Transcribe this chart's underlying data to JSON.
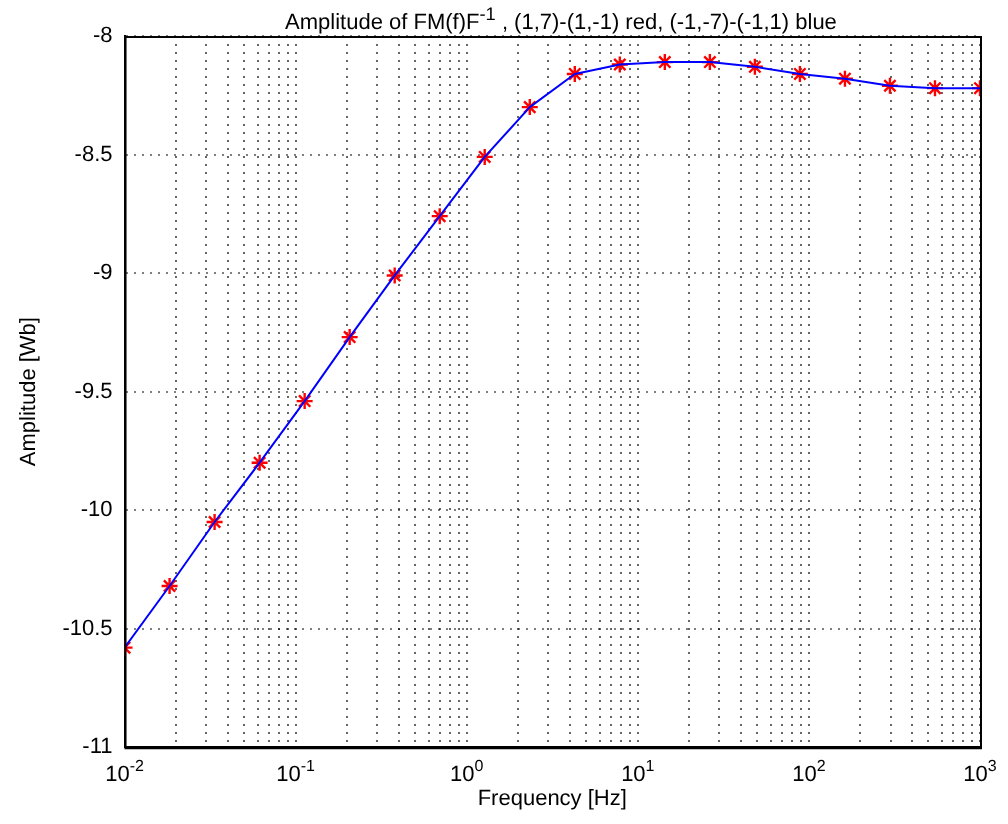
{
  "chart_data": {
    "type": "line",
    "title": "Amplitude of FM(f)F$^{-1}$ , (1,7)-(1,-1) red, (-1,-7)-(-1,1) blue",
    "xlabel": "Frequency [Hz]",
    "ylabel": "Amplitude [Wb]",
    "x": [
      0.01,
      0.01833,
      0.0336,
      0.06158,
      0.1129,
      0.2069,
      0.3793,
      0.6952,
      1.274,
      2.336,
      4.281,
      7.848,
      14.38,
      26.37,
      48.33,
      88.59,
      162.4,
      297.6,
      545.6,
      1000
    ],
    "series": [
      {
        "type": "line",
        "color": "#0000ff",
        "marker": "none",
        "values": [
          -10.58,
          -10.32,
          -10.05,
          -9.8,
          -9.54,
          -9.27,
          -9.01,
          -8.76,
          -8.51,
          -8.3,
          -8.16,
          -8.12,
          -8.11,
          -8.11,
          -8.13,
          -8.16,
          -8.18,
          -8.21,
          -8.22,
          -8.22
        ]
      },
      {
        "type": "scatter",
        "color": "#ff0000",
        "marker": "cross",
        "values": [
          -10.58,
          -10.32,
          -10.05,
          -9.8,
          -9.54,
          -9.27,
          -9.01,
          -8.76,
          -8.51,
          -8.3,
          -8.16,
          -8.12,
          -8.11,
          -8.11,
          -8.13,
          -8.16,
          -8.18,
          -8.21,
          -8.22,
          -8.22
        ]
      }
    ],
    "log": "x",
    "xlim": [
      0.01,
      1000
    ],
    "xticks": [
      {
        "value": 0.01,
        "label": "10$^{-2}$"
      },
      {
        "value": 0.02,
        "label": null
      },
      {
        "value": 0.03,
        "label": null
      },
      {
        "value": 0.04,
        "label": null
      },
      {
        "value": 0.05,
        "label": null
      },
      {
        "value": 0.06,
        "label": null
      },
      {
        "value": 0.07,
        "label": null
      },
      {
        "value": 0.08,
        "label": null
      },
      {
        "value": 0.09,
        "label": null
      },
      {
        "value": 0.1,
        "label": "10$^{-1}$"
      },
      {
        "value": 0.2,
        "label": null
      },
      {
        "value": 0.3,
        "label": null
      },
      {
        "value": 0.4,
        "label": null
      },
      {
        "value": 0.5,
        "label": null
      },
      {
        "value": 0.6,
        "label": null
      },
      {
        "value": 0.7,
        "label": null
      },
      {
        "value": 0.8,
        "label": null
      },
      {
        "value": 0.9,
        "label": null
      },
      {
        "value": 1,
        "label": "10$^{0}$"
      },
      {
        "value": 2,
        "label": null
      },
      {
        "value": 3,
        "label": null
      },
      {
        "value": 4,
        "label": null
      },
      {
        "value": 5,
        "label": null
      },
      {
        "value": 6,
        "label": null
      },
      {
        "value": 7,
        "label": null
      },
      {
        "value": 8,
        "label": null
      },
      {
        "value": 9,
        "label": null
      },
      {
        "value": 10,
        "label": "10$^{1}$"
      },
      {
        "value": 20,
        "label": null
      },
      {
        "value": 30,
        "label": null
      },
      {
        "value": 40,
        "label": null
      },
      {
        "value": 50,
        "label": null
      },
      {
        "value": 60,
        "label": null
      },
      {
        "value": 70,
        "label": null
      },
      {
        "value": 80,
        "label": null
      },
      {
        "value": 90,
        "label": null
      },
      {
        "value": 100,
        "label": "10$^{2}$"
      },
      {
        "value": 200,
        "label": null
      },
      {
        "value": 300,
        "label": null
      },
      {
        "value": 400,
        "label": null
      },
      {
        "value": 500,
        "label": null
      },
      {
        "value": 600,
        "label": null
      },
      {
        "value": 700,
        "label": null
      },
      {
        "value": 800,
        "label": null
      },
      {
        "value": 900,
        "label": null
      },
      {
        "value": 1000,
        "label": "10$^{3}$"
      }
    ],
    "ylim": [
      -11,
      -8
    ],
    "yticks": [
      -11,
      -10.5,
      -10,
      -9.5,
      -9,
      -8.5,
      -8
    ],
    "grid": true,
    "legend": false
  }
}
